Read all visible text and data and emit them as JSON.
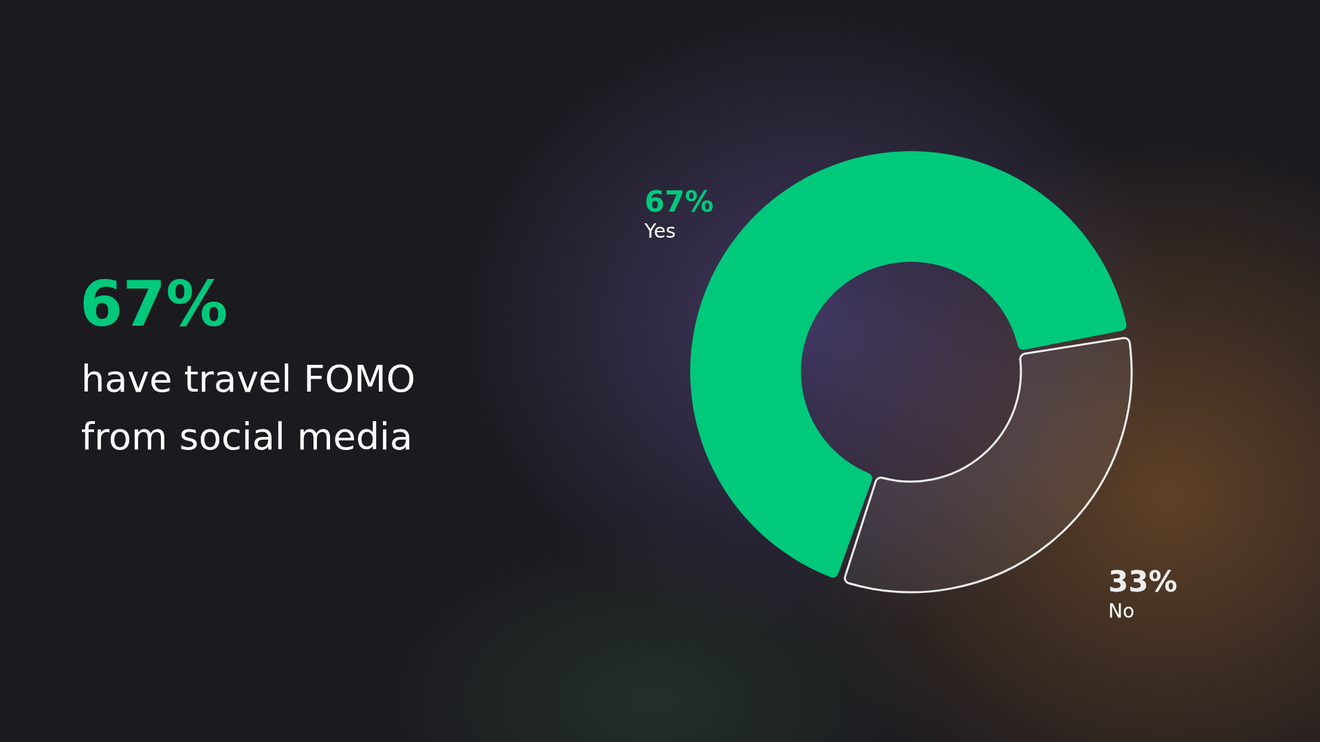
{
  "chart_data": {
    "type": "donut",
    "title": "67%",
    "subtitle": "have travel FOMO from social media",
    "categories": [
      "Yes",
      "No"
    ],
    "values": [
      67,
      33
    ],
    "colors": [
      "#00c97c",
      "#eeeeee"
    ],
    "value_labels": [
      "67%",
      "33%"
    ]
  }
}
